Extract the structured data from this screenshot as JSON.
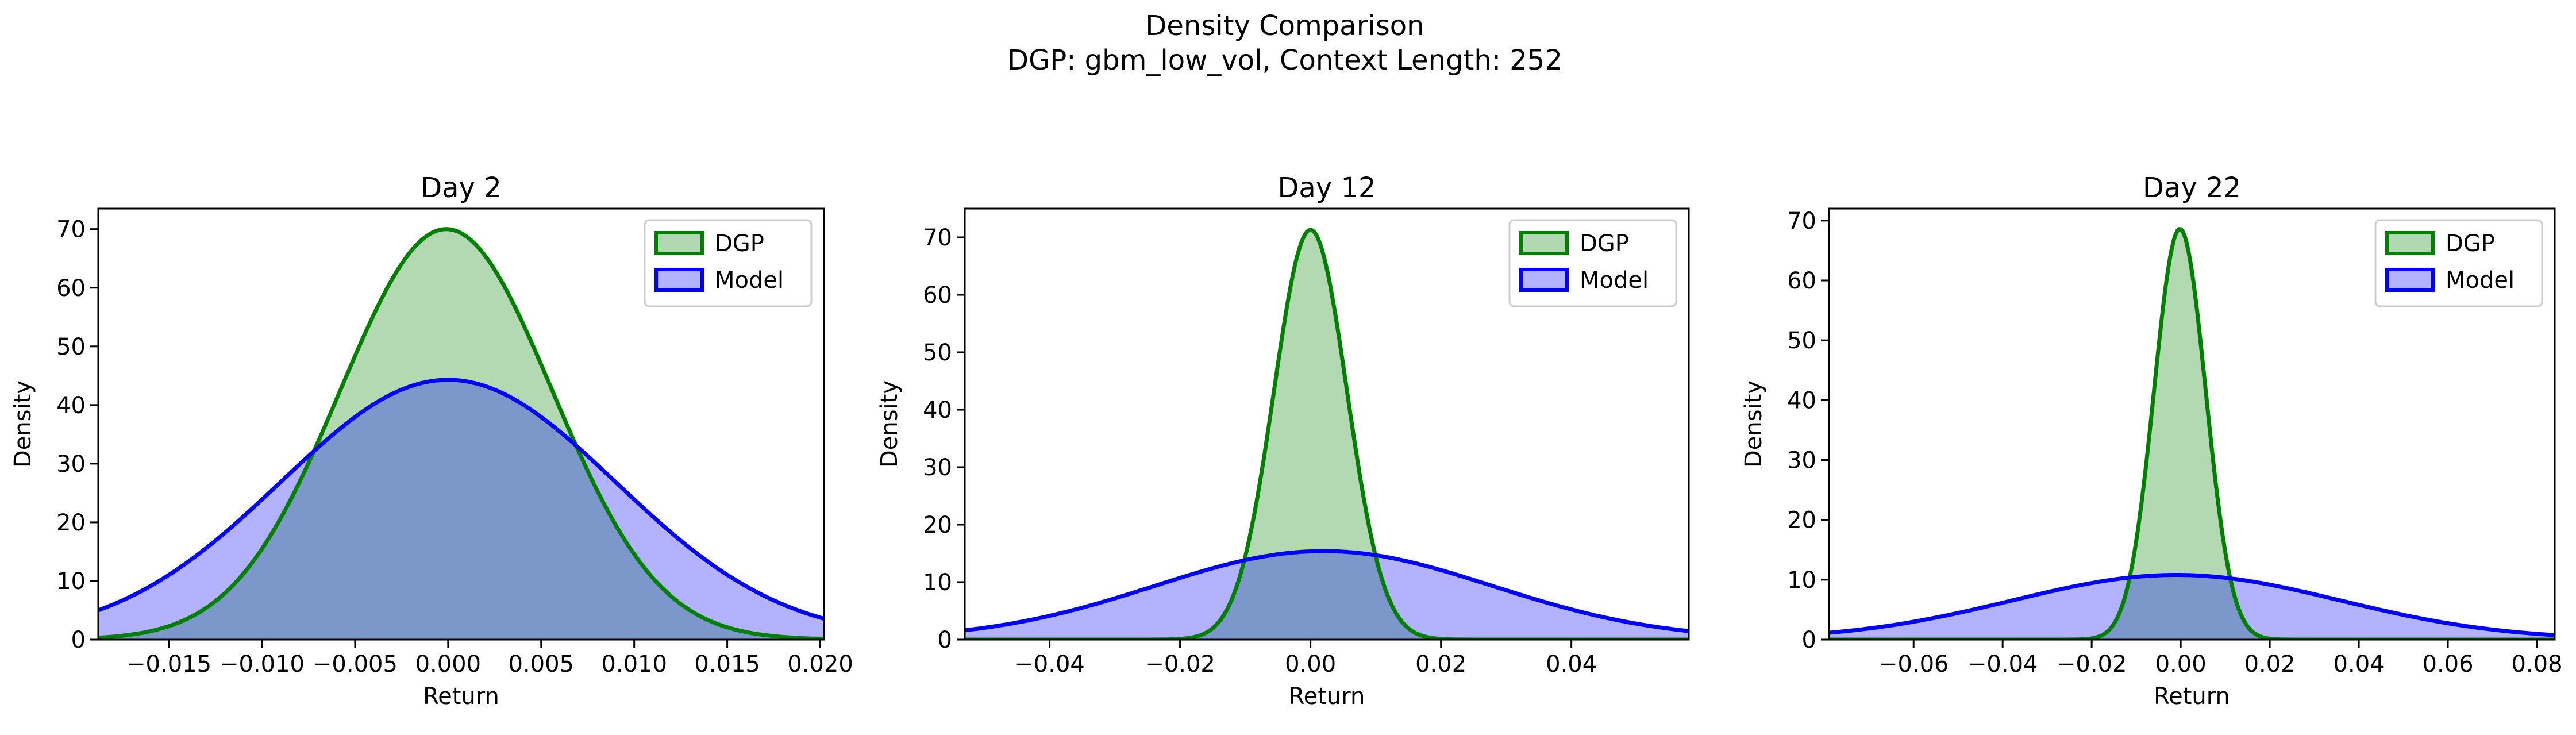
{
  "figure": {
    "title_line1": "Density Comparison",
    "title_line2": "DGP: gbm_low_vol, Context Length: 252"
  },
  "colors": {
    "dgp_line": "#008000",
    "dgp_fill": "#b2d8b2",
    "model_line": "#0000ff",
    "model_fill": "#b2b2ff",
    "overlap_fill": "#7f9ccb"
  },
  "chart_data": [
    {
      "type": "area",
      "title": "Day 2",
      "xlabel": "Return",
      "ylabel": "Density",
      "xlim": [
        -0.0188,
        0.0202
      ],
      "ylim": [
        0,
        73.5
      ],
      "xticks": [
        -0.015,
        -0.01,
        -0.005,
        0.0,
        0.005,
        0.01,
        0.015,
        0.02
      ],
      "xtick_labels": [
        "−0.015",
        "−0.010",
        "−0.005",
        "0.000",
        "0.005",
        "0.010",
        "0.015",
        "0.020"
      ],
      "yticks": [
        0,
        10,
        20,
        30,
        40,
        50,
        60,
        70
      ],
      "ytick_labels": [
        "0",
        "10",
        "20",
        "30",
        "40",
        "50",
        "60",
        "70"
      ],
      "legend": "top-right",
      "series": [
        {
          "name": "DGP",
          "distribution": "normal",
          "mean": -0.0001,
          "std": 0.0057,
          "peak": 70.0
        },
        {
          "name": "Model",
          "distribution": "normal",
          "mean": 0.0,
          "std": 0.009,
          "peak": 44.3
        }
      ]
    },
    {
      "type": "area",
      "title": "Day 12",
      "xlabel": "Return",
      "ylabel": "Density",
      "xlim": [
        -0.053,
        0.058
      ],
      "ylim": [
        0,
        75
      ],
      "xticks": [
        -0.04,
        -0.02,
        0.0,
        0.02,
        0.04
      ],
      "xtick_labels": [
        "−0.04",
        "−0.02",
        "0.00",
        "0.02",
        "0.04"
      ],
      "yticks": [
        0,
        10,
        20,
        30,
        40,
        50,
        60,
        70
      ],
      "ytick_labels": [
        "0",
        "10",
        "20",
        "30",
        "40",
        "50",
        "60",
        "70"
      ],
      "legend": "top-right",
      "series": [
        {
          "name": "DGP",
          "distribution": "normal",
          "mean": 0.0,
          "std": 0.0056,
          "peak": 71.3
        },
        {
          "name": "Model",
          "distribution": "normal",
          "mean": 0.002,
          "std": 0.0259,
          "peak": 15.4
        }
      ]
    },
    {
      "type": "area",
      "title": "Day 22",
      "xlabel": "Return",
      "ylabel": "Density",
      "xlim": [
        -0.079,
        0.084
      ],
      "ylim": [
        0,
        72
      ],
      "xticks": [
        -0.06,
        -0.04,
        -0.02,
        0.0,
        0.02,
        0.04,
        0.06,
        0.08
      ],
      "xtick_labels": [
        "−0.06",
        "−0.04",
        "−0.02",
        "0.00",
        "0.02",
        "0.04",
        "0.06",
        "0.08"
      ],
      "yticks": [
        0,
        10,
        20,
        30,
        40,
        50,
        60,
        70
      ],
      "ytick_labels": [
        "0",
        "10",
        "20",
        "30",
        "40",
        "50",
        "60",
        "70"
      ],
      "legend": "top-right",
      "series": [
        {
          "name": "DGP",
          "distribution": "normal",
          "mean": -0.0002,
          "std": 0.0058,
          "peak": 68.6
        },
        {
          "name": "Model",
          "distribution": "normal",
          "mean": -0.001,
          "std": 0.0368,
          "peak": 10.8
        }
      ]
    }
  ]
}
